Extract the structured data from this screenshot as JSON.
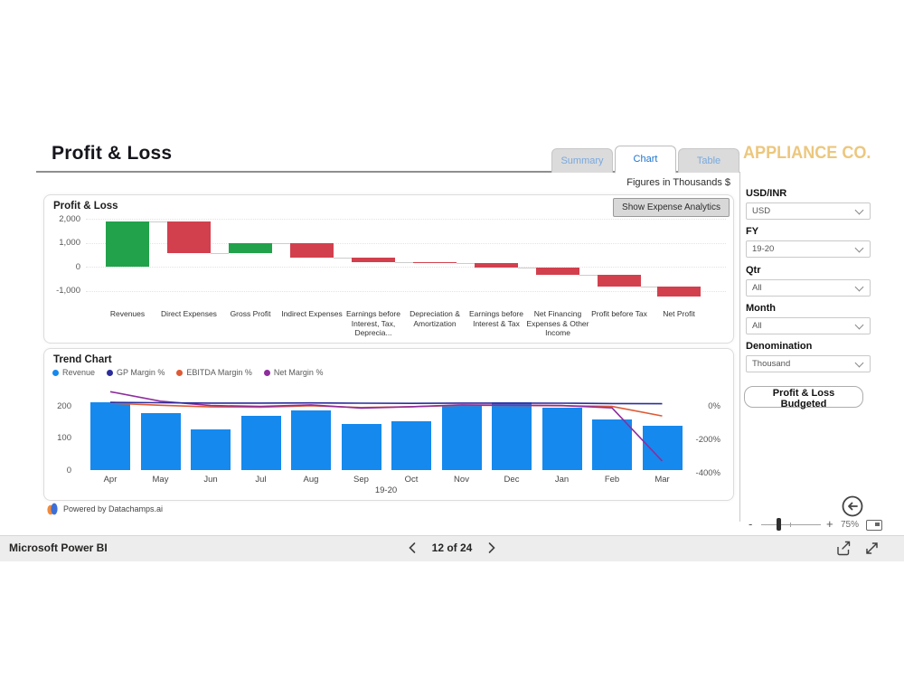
{
  "header": {
    "title": "Profit & Loss",
    "tabs": [
      {
        "label": "Summary",
        "active": false
      },
      {
        "label": "Chart",
        "active": true
      },
      {
        "label": "Table",
        "active": false
      }
    ],
    "brand": "APPLIANCE CO.",
    "figures_note": "Figures in Thousands $"
  },
  "chart_data": [
    {
      "type": "waterfall",
      "title": "Profit & Loss",
      "button_label": "Show Expense Analytics",
      "increase_color": "#22A24B",
      "decrease_color": "#D2404E",
      "ylim": [
        -1500,
        2100
      ],
      "yticks": [
        [
          "2,000",
          2000
        ],
        [
          "1,000",
          1000
        ],
        [
          "0",
          0
        ],
        [
          "-1,000",
          -1000
        ]
      ],
      "bars": [
        {
          "label": "Revenues",
          "from": 0,
          "to": 1900,
          "kind": "increase"
        },
        {
          "label": "Direct Expenses",
          "from": 1900,
          "to": 550,
          "kind": "decrease"
        },
        {
          "label": "Gross Profit",
          "from": 550,
          "to": 1000,
          "kind": "increase"
        },
        {
          "label": "Indirect Expenses",
          "from": 1000,
          "to": 380,
          "kind": "decrease"
        },
        {
          "label": "Earnings before Interest, Tax, Deprecia...",
          "from": 380,
          "to": 180,
          "kind": "decrease"
        },
        {
          "label": "Depreciation & Amortization",
          "from": 180,
          "to": 150,
          "kind": "decrease"
        },
        {
          "label": "Earnings before Interest & Tax",
          "from": 150,
          "to": -50,
          "kind": "decrease"
        },
        {
          "label": "Net Financing Expenses & Other Income",
          "from": -50,
          "to": -340,
          "kind": "decrease"
        },
        {
          "label": "Profit before Tax",
          "from": -340,
          "to": -820,
          "kind": "decrease"
        },
        {
          "label": "Net Profit",
          "from": -820,
          "to": -1260,
          "kind": "decrease"
        }
      ]
    },
    {
      "type": "bar+line",
      "title": "Trend Chart",
      "categories": [
        "Apr",
        "May",
        "Jun",
        "Jul",
        "Aug",
        "Sep",
        "Oct",
        "Nov",
        "Dec",
        "Jan",
        "Feb",
        "Mar"
      ],
      "xlabel": "19-20",
      "left_axis": {
        "ticks": [
          [
            "200",
            200
          ],
          [
            "100",
            100
          ],
          [
            "0",
            0
          ]
        ],
        "lim": [
          0,
          240
        ]
      },
      "right_axis": {
        "ticks": [
          [
            "0%",
            0
          ],
          [
            "-200%",
            -200
          ],
          [
            "-400%",
            -400
          ]
        ],
        "lim": [
          -400,
          100
        ]
      },
      "series": [
        {
          "name": "Revenue",
          "type": "bar",
          "axis": "left",
          "color": "#1589EE",
          "values": [
            213,
            178,
            126,
            169,
            187,
            143,
            152,
            201,
            213,
            194,
            157,
            138
          ]
        },
        {
          "name": "GP Margin %",
          "type": "line",
          "axis": "right",
          "color": "#2B2D9B",
          "values": [
            21,
            19,
            17,
            17,
            18,
            16,
            15,
            17,
            17,
            16,
            14,
            13
          ]
        },
        {
          "name": "EBITDA Margin %",
          "type": "line",
          "axis": "right",
          "color": "#DE5A35",
          "values": [
            16,
            4,
            -6,
            -8,
            1,
            -10,
            -5,
            4,
            3,
            1,
            -3,
            -60
          ]
        },
        {
          "name": "Net Margin %",
          "type": "line",
          "axis": "right",
          "color": "#8E2D9C",
          "values": [
            85,
            28,
            2,
            -3,
            6,
            -13,
            -5,
            6,
            4,
            2,
            -12,
            -330
          ]
        }
      ]
    }
  ],
  "sidebar": {
    "filters": [
      {
        "label": "USD/INR",
        "value": "USD"
      },
      {
        "label": "FY",
        "value": "19-20"
      },
      {
        "label": "Qtr",
        "value": "All"
      },
      {
        "label": "Month",
        "value": "All"
      },
      {
        "label": "Denomination",
        "value": "Thousand"
      }
    ],
    "budget_button": "Profit & Loss Budgeted"
  },
  "footer": {
    "powered_by": "Powered by Datachamps.ai"
  },
  "zoombar": {
    "minus": "-",
    "plus": "+",
    "zoom_level": "75%"
  },
  "statusbar": {
    "app_name": "Microsoft Power BI",
    "page_indicator": "12 of 24"
  }
}
